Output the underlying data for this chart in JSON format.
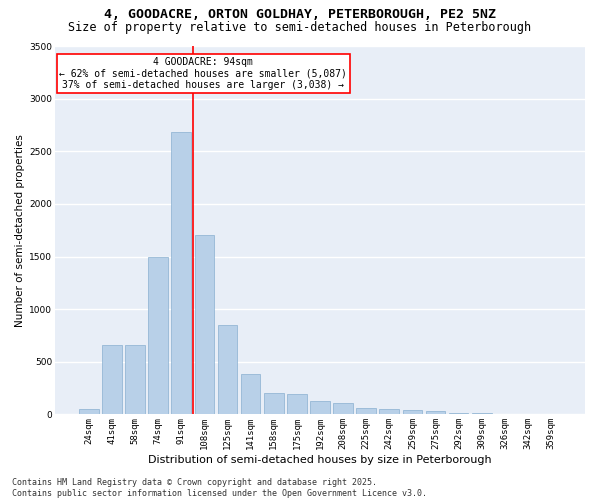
{
  "title1": "4, GOODACRE, ORTON GOLDHAY, PETERBOROUGH, PE2 5NZ",
  "title2": "Size of property relative to semi-detached houses in Peterborough",
  "xlabel": "Distribution of semi-detached houses by size in Peterborough",
  "ylabel": "Number of semi-detached properties",
  "categories": [
    "24sqm",
    "41sqm",
    "58sqm",
    "74sqm",
    "91sqm",
    "108sqm",
    "125sqm",
    "141sqm",
    "158sqm",
    "175sqm",
    "192sqm",
    "208sqm",
    "225sqm",
    "242sqm",
    "259sqm",
    "275sqm",
    "292sqm",
    "309sqm",
    "326sqm",
    "342sqm",
    "359sqm"
  ],
  "values": [
    50,
    660,
    660,
    1500,
    2680,
    1700,
    850,
    380,
    200,
    195,
    130,
    110,
    65,
    55,
    38,
    28,
    18,
    12,
    6,
    5,
    2
  ],
  "bar_color": "#b8d0e8",
  "bar_edge_color": "#8ab0d0",
  "bar_width": 0.85,
  "vline_pos": 4.5,
  "annotation_line1": "4 GOODACRE: 94sqm",
  "annotation_line2": "← 62% of semi-detached houses are smaller (5,087)",
  "annotation_line3": "37% of semi-detached houses are larger (3,038) →",
  "annotation_box_color": "white",
  "annotation_box_edge_color": "red",
  "vline_color": "red",
  "ylim": [
    0,
    3500
  ],
  "yticks": [
    0,
    500,
    1000,
    1500,
    2000,
    2500,
    3000,
    3500
  ],
  "bg_color": "#e8eef7",
  "grid_color": "white",
  "footer_text": "Contains HM Land Registry data © Crown copyright and database right 2025.\nContains public sector information licensed under the Open Government Licence v3.0.",
  "title1_fontsize": 9.5,
  "title2_fontsize": 8.5,
  "xlabel_fontsize": 8,
  "ylabel_fontsize": 7.5,
  "tick_fontsize": 6.5,
  "annotation_fontsize": 7,
  "footer_fontsize": 6
}
